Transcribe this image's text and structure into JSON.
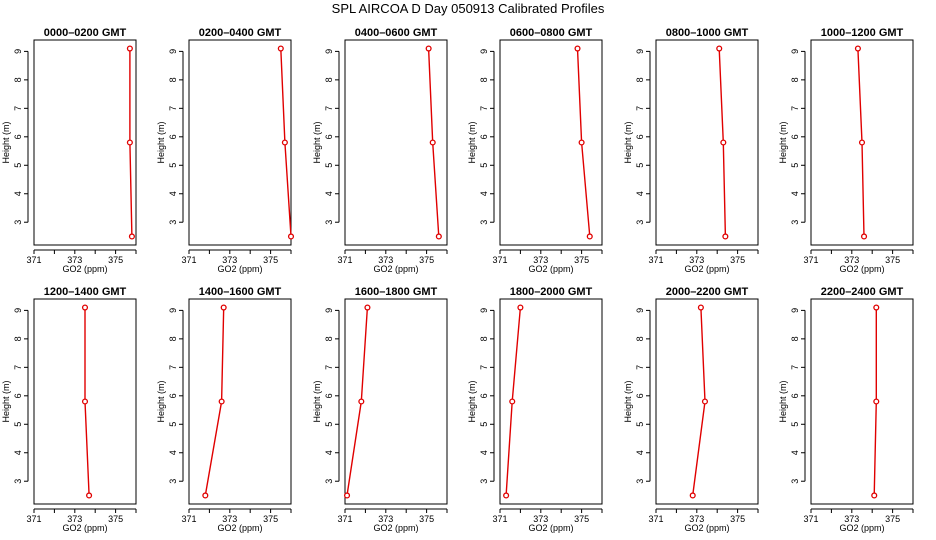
{
  "figure": {
    "title": "SPL AIRCOA D  Day 050913  Calibrated Profiles"
  },
  "colors": {
    "profile": "#e00000",
    "axis": "#000000"
  },
  "chart_data": [
    {
      "type": "line",
      "title": "0000–0200 GMT",
      "xlabel": "GO2 (ppm)",
      "ylabel": "Height (m)",
      "xlim": [
        371,
        376
      ],
      "ylim": [
        2.2,
        9.4
      ],
      "xticks": [
        371,
        373,
        375
      ],
      "yticks": [
        3,
        4,
        5,
        6,
        7,
        8,
        9
      ],
      "series": [
        {
          "x": [
            375.7,
            375.7,
            375.8
          ],
          "y": [
            9.1,
            5.8,
            2.5
          ]
        }
      ]
    },
    {
      "type": "line",
      "title": "0200–0400 GMT",
      "xlabel": "GO2 (ppm)",
      "ylabel": "Height (m)",
      "xlim": [
        371,
        376
      ],
      "ylim": [
        2.2,
        9.4
      ],
      "xticks": [
        371,
        373,
        375
      ],
      "yticks": [
        3,
        4,
        5,
        6,
        7,
        8,
        9
      ],
      "series": [
        {
          "x": [
            375.5,
            375.7,
            376.0
          ],
          "y": [
            9.1,
            5.8,
            2.5
          ]
        }
      ]
    },
    {
      "type": "line",
      "title": "0400–0600 GMT",
      "xlabel": "GO2 (ppm)",
      "ylabel": "Height (m)",
      "xlim": [
        371,
        376
      ],
      "ylim": [
        2.2,
        9.4
      ],
      "xticks": [
        371,
        373,
        375
      ],
      "yticks": [
        3,
        4,
        5,
        6,
        7,
        8,
        9
      ],
      "series": [
        {
          "x": [
            375.1,
            375.3,
            375.6
          ],
          "y": [
            9.1,
            5.8,
            2.5
          ]
        }
      ]
    },
    {
      "type": "line",
      "title": "0600–0800 GMT",
      "xlabel": "GO2 (ppm)",
      "ylabel": "Height (m)",
      "xlim": [
        371,
        376
      ],
      "ylim": [
        2.2,
        9.4
      ],
      "xticks": [
        371,
        373,
        375
      ],
      "yticks": [
        3,
        4,
        5,
        6,
        7,
        8,
        9
      ],
      "series": [
        {
          "x": [
            374.8,
            375.0,
            375.4
          ],
          "y": [
            9.1,
            5.8,
            2.5
          ]
        }
      ]
    },
    {
      "type": "line",
      "title": "0800–1000 GMT",
      "xlabel": "GO2 (ppm)",
      "ylabel": "Height (m)",
      "xlim": [
        371,
        376
      ],
      "ylim": [
        2.2,
        9.4
      ],
      "xticks": [
        371,
        373,
        375
      ],
      "yticks": [
        3,
        4,
        5,
        6,
        7,
        8,
        9
      ],
      "series": [
        {
          "x": [
            374.1,
            374.3,
            374.4
          ],
          "y": [
            9.1,
            5.8,
            2.5
          ]
        }
      ]
    },
    {
      "type": "line",
      "title": "1000–1200 GMT",
      "xlabel": "GO2 (ppm)",
      "ylabel": "Height (m)",
      "xlim": [
        371,
        376
      ],
      "ylim": [
        2.2,
        9.4
      ],
      "xticks": [
        371,
        373,
        375
      ],
      "yticks": [
        3,
        4,
        5,
        6,
        7,
        8,
        9
      ],
      "series": [
        {
          "x": [
            373.3,
            373.5,
            373.6
          ],
          "y": [
            9.1,
            5.8,
            2.5
          ]
        }
      ]
    },
    {
      "type": "line",
      "title": "1200–1400 GMT",
      "xlabel": "GO2 (ppm)",
      "ylabel": "Height (m)",
      "xlim": [
        371,
        376
      ],
      "ylim": [
        2.2,
        9.4
      ],
      "xticks": [
        371,
        373,
        375
      ],
      "yticks": [
        3,
        4,
        5,
        6,
        7,
        8,
        9
      ],
      "series": [
        {
          "x": [
            373.5,
            373.5,
            373.7
          ],
          "y": [
            9.1,
            5.8,
            2.5
          ]
        }
      ]
    },
    {
      "type": "line",
      "title": "1400–1600 GMT",
      "xlabel": "GO2 (ppm)",
      "ylabel": "Height (m)",
      "xlim": [
        371,
        376
      ],
      "ylim": [
        2.2,
        9.4
      ],
      "xticks": [
        371,
        373,
        375
      ],
      "yticks": [
        3,
        4,
        5,
        6,
        7,
        8,
        9
      ],
      "series": [
        {
          "x": [
            372.7,
            372.6,
            371.8
          ],
          "y": [
            9.1,
            5.8,
            2.5
          ]
        }
      ]
    },
    {
      "type": "line",
      "title": "1600–1800 GMT",
      "xlabel": "GO2 (ppm)",
      "ylabel": "Height (m)",
      "xlim": [
        371,
        376
      ],
      "ylim": [
        2.2,
        9.4
      ],
      "xticks": [
        371,
        373,
        375
      ],
      "yticks": [
        3,
        4,
        5,
        6,
        7,
        8,
        9
      ],
      "series": [
        {
          "x": [
            372.1,
            371.8,
            371.1
          ],
          "y": [
            9.1,
            5.8,
            2.5
          ]
        }
      ]
    },
    {
      "type": "line",
      "title": "1800–2000 GMT",
      "xlabel": "GO2 (ppm)",
      "ylabel": "Height (m)",
      "xlim": [
        371,
        376
      ],
      "ylim": [
        2.2,
        9.4
      ],
      "xticks": [
        371,
        373,
        375
      ],
      "yticks": [
        3,
        4,
        5,
        6,
        7,
        8,
        9
      ],
      "series": [
        {
          "x": [
            372.0,
            371.6,
            371.3
          ],
          "y": [
            9.1,
            5.8,
            2.5
          ]
        }
      ]
    },
    {
      "type": "line",
      "title": "2000–2200 GMT",
      "xlabel": "GO2 (ppm)",
      "ylabel": "Height (m)",
      "xlim": [
        371,
        376
      ],
      "ylim": [
        2.2,
        9.4
      ],
      "xticks": [
        371,
        373,
        375
      ],
      "yticks": [
        3,
        4,
        5,
        6,
        7,
        8,
        9
      ],
      "series": [
        {
          "x": [
            373.2,
            373.4,
            372.8
          ],
          "y": [
            9.1,
            5.8,
            2.5
          ]
        }
      ]
    },
    {
      "type": "line",
      "title": "2200–2400 GMT",
      "xlabel": "GO2 (ppm)",
      "ylabel": "Height (m)",
      "xlim": [
        371,
        376
      ],
      "ylim": [
        2.2,
        9.4
      ],
      "xticks": [
        371,
        373,
        375
      ],
      "yticks": [
        3,
        4,
        5,
        6,
        7,
        8,
        9
      ],
      "series": [
        {
          "x": [
            374.2,
            374.2,
            374.1
          ],
          "y": [
            9.1,
            5.8,
            2.5
          ]
        }
      ]
    }
  ]
}
